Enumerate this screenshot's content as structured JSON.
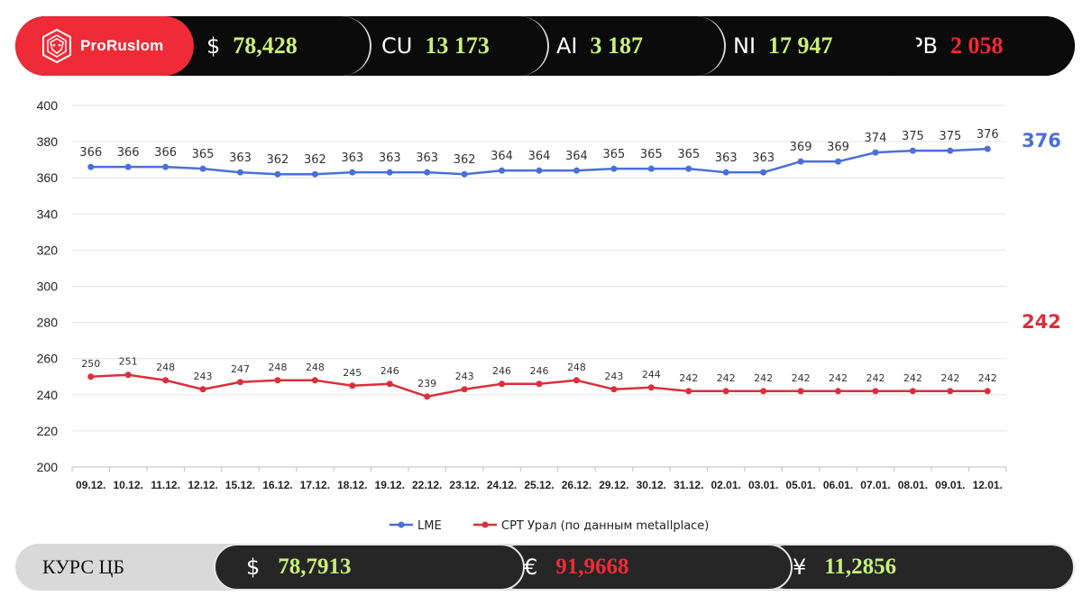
{
  "header": {
    "brand": "ProRuslom",
    "tickers": [
      {
        "symbol": "$",
        "value": "78,428",
        "color": "#c8f07a"
      },
      {
        "symbol": "CU",
        "value": "13 173",
        "color": "#c8f07a"
      },
      {
        "symbol": "AI",
        "value": "3 187",
        "color": "#c8f07a"
      },
      {
        "symbol": "NI",
        "value": "17 947",
        "color": "#c8f07a"
      },
      {
        "symbol": "PB",
        "value": "2 058",
        "color": "#ee2b37"
      }
    ]
  },
  "footer": {
    "label": "КУРС ЦБ",
    "rates": [
      {
        "symbol": "$",
        "value": "78,7913",
        "color": "#c8f07a"
      },
      {
        "symbol": "€",
        "value": "91,9668",
        "color": "#ee2b37"
      },
      {
        "symbol": "¥",
        "value": "11,2856",
        "color": "#c8f07a"
      }
    ]
  },
  "chart_data": {
    "type": "line",
    "title": "",
    "xlabel": "",
    "ylabel": "",
    "ylim": [
      200,
      400
    ],
    "yticks": [
      200,
      220,
      240,
      260,
      280,
      300,
      320,
      340,
      360,
      380,
      400
    ],
    "grid": true,
    "legend_position": "bottom",
    "categories": [
      "09.12.",
      "10.12.",
      "11.12.",
      "12.12.",
      "15.12.",
      "16.12.",
      "17.12.",
      "18.12.",
      "19.12.",
      "22.12.",
      "23.12.",
      "24.12.",
      "25.12.",
      "26.12.",
      "29.12.",
      "30.12.",
      "31.12.",
      "02.01.",
      "03.01.",
      "05.01.",
      "06.01.",
      "07.01.",
      "08.01.",
      "09.01.",
      "12.01."
    ],
    "series": [
      {
        "name": "LME",
        "color": "#4a6fd9",
        "last_label": "376",
        "values": [
          366,
          366,
          366,
          365,
          363,
          362,
          362,
          363,
          363,
          363,
          362,
          364,
          364,
          364,
          365,
          365,
          365,
          363,
          363,
          369,
          369,
          374,
          375,
          375,
          376
        ]
      },
      {
        "name": "СРТ   Урал (по данным metallplace)",
        "color": "#d9303c",
        "last_label": "242",
        "values": [
          250,
          251,
          248,
          243,
          247,
          248,
          248,
          245,
          246,
          239,
          243,
          246,
          246,
          248,
          243,
          244,
          242,
          242,
          242,
          242,
          242,
          242,
          242,
          242,
          242
        ]
      }
    ]
  }
}
